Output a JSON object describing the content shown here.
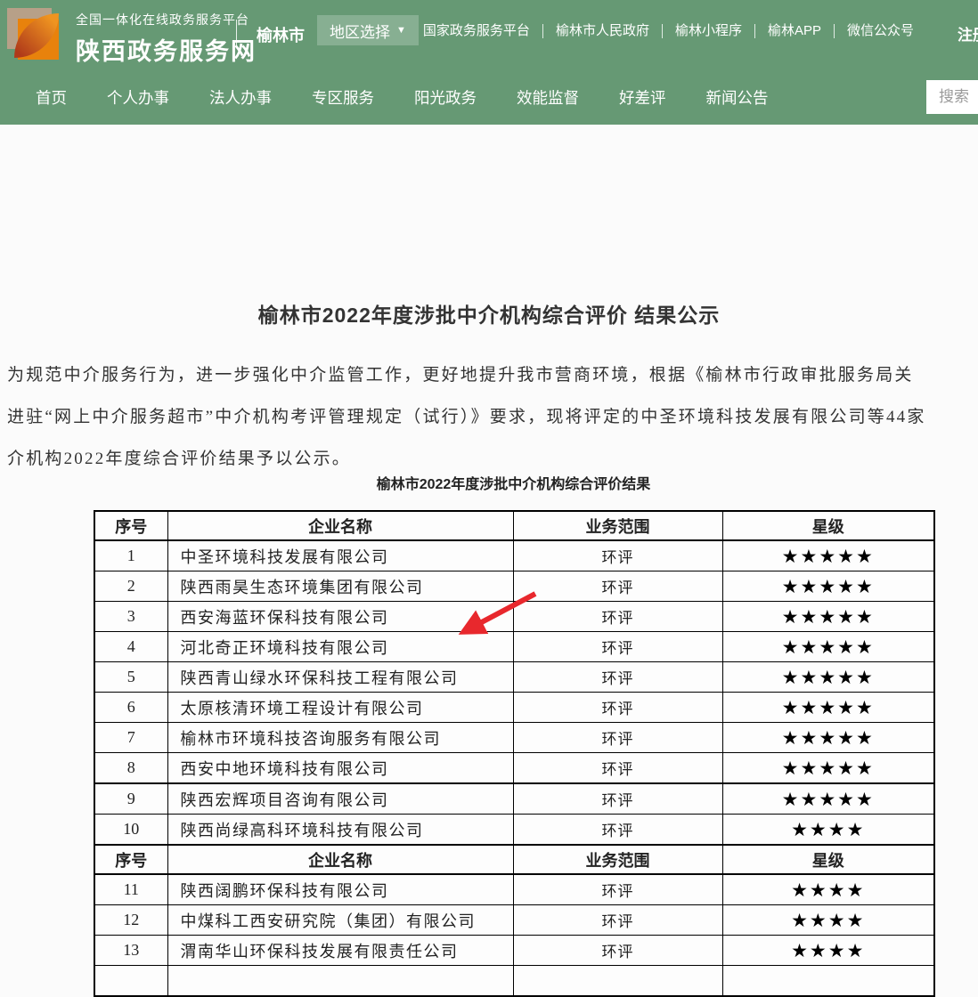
{
  "header": {
    "platform_line": "全国一体化在线政务服务平台",
    "site_name": "陕西政务服务网",
    "city": "榆林市",
    "region_selector": "地区选择",
    "links": [
      "国家政务服务平台",
      "榆林市人民政府",
      "榆林小程序",
      "榆林APP",
      "微信公众号"
    ],
    "register": "注册"
  },
  "nav": {
    "items": [
      "首页",
      "个人办事",
      "法人办事",
      "专区服务",
      "阳光政务",
      "效能监督",
      "好差评",
      "新闻公告"
    ],
    "search_placeholder": "搜索"
  },
  "article": {
    "title": "榆林市2022年度涉批中介机构综合评价 结果公示",
    "paragraph_lines": [
      "为规范中介服务行为，进一步强化中介监管工作，更好地提升我市营商环境，根据《榆林市行政审批服务局关",
      "进驻“网上中介服务超市”中介机构考评管理规定（试行）》要求，现将评定的中圣环境科技发展有限公司等44家",
      "介机构2022年度综合评价结果予以公示。"
    ],
    "table_caption": "榆林市2022年度涉批中介机构综合评价结果"
  },
  "table": {
    "headers": [
      "序号",
      "企业名称",
      "业务范围",
      "星级"
    ],
    "star_char": "★",
    "sections": [
      {
        "rows": [
          {
            "no": "1",
            "name": "中圣环境科技发展有限公司",
            "scope": "环评",
            "stars": 5
          },
          {
            "no": "2",
            "name": "陕西雨昊生态环境集团有限公司",
            "scope": "环评",
            "stars": 5
          },
          {
            "no": "3",
            "name": "西安海蓝环保科技有限公司",
            "scope": "环评",
            "stars": 5
          },
          {
            "no": "4",
            "name": "河北奇正环境科技有限公司",
            "scope": "环评",
            "stars": 5
          },
          {
            "no": "5",
            "name": "陕西青山绿水环保科技工程有限公司",
            "scope": "环评",
            "stars": 5
          },
          {
            "no": "6",
            "name": "太原核清环境工程设计有限公司",
            "scope": "环评",
            "stars": 5
          },
          {
            "no": "7",
            "name": "榆林市环境科技咨询服务有限公司",
            "scope": "环评",
            "stars": 5
          },
          {
            "no": "8",
            "name": "西安中地环境科技有限公司",
            "scope": "环评",
            "stars": 5
          },
          {
            "no": "9",
            "name": "陕西宏辉项目咨询有限公司",
            "scope": "环评",
            "stars": 5,
            "sep": true
          },
          {
            "no": "10",
            "name": "陕西尚绿高科环境科技有限公司",
            "scope": "环评",
            "stars": 4
          }
        ]
      },
      {
        "rows": [
          {
            "no": "11",
            "name": "陕西阔鹏环保科技有限公司",
            "scope": "环评",
            "stars": 4
          },
          {
            "no": "12",
            "name": "中煤科工西安研究院（集团）有限公司",
            "scope": "环评",
            "stars": 4
          },
          {
            "no": "13",
            "name": "渭南华山环保科技发展有限责任公司",
            "scope": "环评",
            "stars": 4
          },
          {
            "no": "",
            "name": "",
            "scope": "",
            "stars": 0
          }
        ]
      }
    ]
  },
  "colors": {
    "header_green": "#669974",
    "table_border": "#000000",
    "star": "#000000",
    "arrow_red": "#e8282d"
  }
}
